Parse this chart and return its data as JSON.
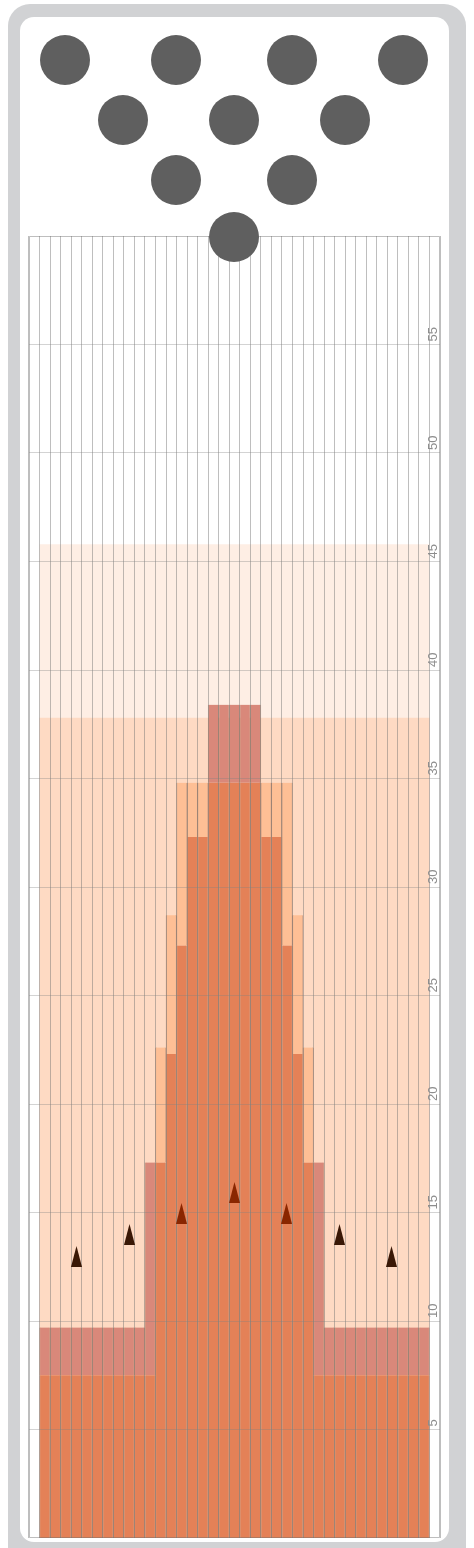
{
  "chart_data": {
    "type": "bar",
    "stacked": true,
    "categories": [
      null,
      null,
      null,
      null,
      null,
      null,
      null,
      null,
      null,
      null,
      null,
      null,
      null,
      null,
      null,
      null,
      null,
      null,
      null,
      null,
      null,
      null,
      null,
      null,
      null,
      null,
      null,
      null,
      null,
      null,
      null,
      null,
      null,
      null,
      null,
      null,
      null,
      null,
      null
    ],
    "series": [
      {
        "color": "#e48157",
        "values": [
          null,
          7.5,
          7.5,
          7.5,
          7.5,
          7.5,
          7.5,
          7.5,
          7.5,
          7.5,
          7.5,
          7.5,
          17.3,
          22.3,
          27.3,
          32.3,
          32.3,
          34.8,
          34.8,
          34.8,
          34.8,
          34.8,
          32.3,
          32.3,
          27.3,
          22.3,
          17.3,
          7.5,
          7.5,
          7.5,
          7.5,
          7.5,
          7.5,
          7.5,
          7.5,
          7.5,
          7.5,
          7.5,
          null
        ]
      },
      {
        "color": "#d9887a",
        "values": [
          null,
          2.2,
          2.2,
          2.2,
          2.2,
          2.2,
          2.2,
          2.2,
          2.2,
          2.2,
          2.2,
          9.8,
          null,
          null,
          null,
          null,
          null,
          3.6,
          3.6,
          3.6,
          3.6,
          3.6,
          null,
          null,
          null,
          null,
          null,
          9.8,
          2.2,
          2.2,
          2.2,
          2.2,
          2.2,
          2.2,
          2.2,
          2.2,
          2.2,
          2.2,
          null
        ]
      },
      {
        "color": "#febf95",
        "values": [
          null,
          null,
          null,
          null,
          null,
          null,
          null,
          null,
          null,
          null,
          null,
          null,
          5.3,
          6.4,
          7.5,
          2.5,
          2.5,
          null,
          null,
          null,
          null,
          null,
          2.5,
          2.5,
          7.5,
          6.4,
          5.3,
          null,
          null,
          null,
          null,
          null,
          null,
          null,
          null,
          null,
          null,
          null,
          null
        ]
      }
    ],
    "bands": [
      {
        "axis": "y",
        "from": 0,
        "to": 45.8,
        "color": "#feeee4"
      },
      {
        "axis": "y",
        "from": 0,
        "to": 37.8,
        "color": "#fedac3"
      }
    ],
    "ylim": [
      0,
      60
    ],
    "yticks": [
      5,
      10,
      15,
      20,
      25,
      30,
      35,
      40,
      45,
      50,
      55
    ],
    "grid": true
  }
}
